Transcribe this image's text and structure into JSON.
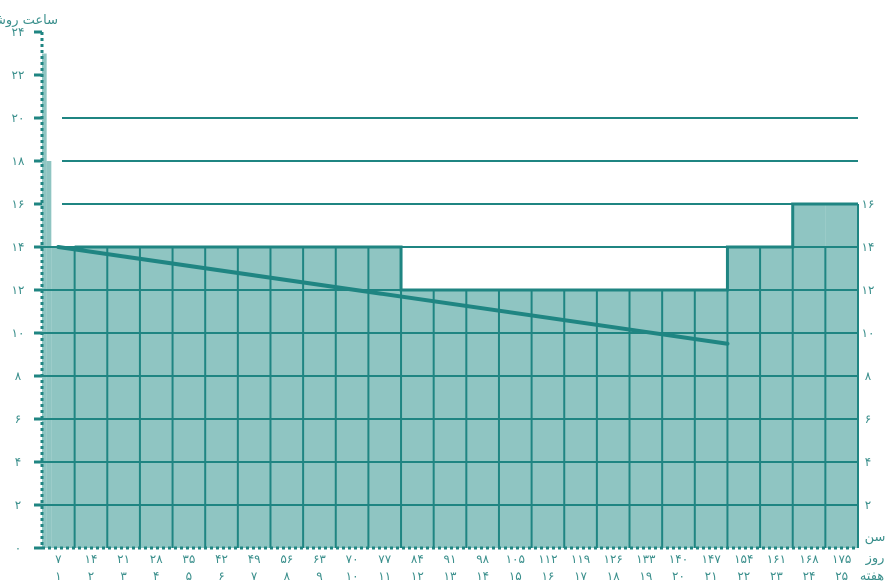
{
  "chart_data": {
    "type": "bar",
    "title": "",
    "ylabel": "ساعت روشنایی",
    "row_label_day": "روز",
    "row_label_week": "هفته",
    "row_label_age": "سن",
    "ylim": [
      0,
      24
    ],
    "yticks_left": [
      "۰",
      "۲",
      "۴",
      "۶",
      "۸",
      "۱۰",
      "۱۲",
      "۱۴",
      "۱۶",
      "۱۸",
      "۲۰",
      "۲۲",
      "۲۴"
    ],
    "yticks_right": [
      "۲",
      "۴",
      "۶",
      "۸",
      "۱۰",
      "۱۲",
      "۱۴",
      "۱۶"
    ],
    "days": [
      "۷",
      "۱۴",
      "۲۱",
      "۲۸",
      "۳۵",
      "۴۲",
      "۴۹",
      "۵۶",
      "۶۳",
      "۷۰",
      "۷۷",
      "۸۴",
      "۹۱",
      "۹۸",
      "۱۰۵",
      "۱۱۲",
      "۱۱۹",
      "۱۲۶",
      "۱۳۳",
      "۱۴۰",
      "۱۴۷",
      "۱۵۴",
      "۱۶۱",
      "۱۶۸",
      "۱۷۵"
    ],
    "weeks": [
      "۱",
      "۲",
      "۳",
      "۴",
      "۵",
      "۶",
      "۷",
      "۸",
      "۹",
      "۱۰",
      "۱۱",
      "۱۲",
      "۱۳",
      "۱۴",
      "۱۵",
      "۱۶",
      "۱۷",
      "۱۸",
      "۱۹",
      "۲۰",
      "۲۱",
      "۲۲",
      "۲۳",
      "۲۴",
      "۲۵"
    ],
    "first_week_days": [
      0,
      1,
      2
    ],
    "first_week_hours": [
      23,
      18,
      14
    ],
    "step_hours": [
      14,
      14,
      14,
      14,
      14,
      14,
      14,
      14,
      14,
      14,
      14,
      12,
      12,
      12,
      12,
      12,
      12,
      12,
      12,
      12,
      12,
      14,
      14,
      16,
      16
    ],
    "trend_line": {
      "x": [
        0.5,
        21
      ],
      "y": [
        14,
        9.5
      ]
    },
    "colors": {
      "fill": "#8fc5c2",
      "line": "#1f8582",
      "text": "#3a8f8c",
      "grid": "#1f8582"
    }
  }
}
